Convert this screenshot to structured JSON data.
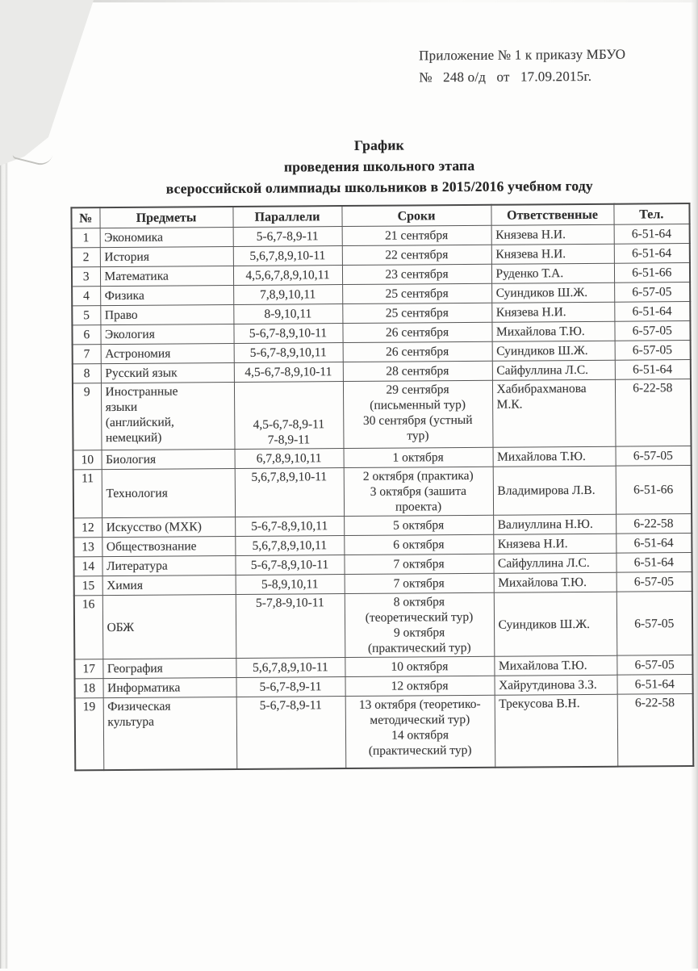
{
  "page": {
    "appendix_line1": "Приложение № 1 к приказу МБУО",
    "appendix_line2": "№   248 о/д   от   17.09.2015г.",
    "title_line1": "График",
    "title_line2": "проведения школьного этапа",
    "title_line3": "всероссийской олимпиады школьников в 2015/2016 учебном году"
  },
  "table": {
    "columns": [
      "№",
      "Предметы",
      "Параллели",
      "Сроки",
      "Ответственные",
      "Тел."
    ],
    "rows": [
      {
        "num": "1",
        "subject": "Экономика",
        "parallels": "5-6,7-8,9-11",
        "dates": "21 сентября",
        "responsible": "Князева Н.И.",
        "phone": "6-51-64"
      },
      {
        "num": "2",
        "subject": "История",
        "parallels": "5,6,7,8,9,10-11",
        "dates": "22 сентября",
        "responsible": "Князева Н.И.",
        "phone": "6-51-64"
      },
      {
        "num": "3",
        "subject": "Математика",
        "parallels": "4,5,6,7,8,9,10,11",
        "dates": "23 сентября",
        "responsible": "Руденко Т.А.",
        "phone": "6-51-66"
      },
      {
        "num": "4",
        "subject": "Физика",
        "parallels": "7,8,9,10,11",
        "dates": "25 сентября",
        "responsible": "Суиндиков Ш.Ж.",
        "phone": "6-57-05"
      },
      {
        "num": "5",
        "subject": "Право",
        "parallels": "8-9,10,11",
        "dates": "25 сентября",
        "responsible": "Князева Н.И.",
        "phone": "6-51-64"
      },
      {
        "num": "6",
        "subject": "Экология",
        "parallels": "5-6,7-8,9,10-11",
        "dates": "26 сентября",
        "responsible": "Михайлова Т.Ю.",
        "phone": "6-57-05"
      },
      {
        "num": "7",
        "subject": "Астрономия",
        "parallels": "5-6,7-8,9,10,11",
        "dates": "26 сентября",
        "responsible": "Суиндиков Ш.Ж.",
        "phone": "6-57-05"
      },
      {
        "num": "8",
        "subject": "Русский язык",
        "parallels": "4,5-6,7-8,9,10-11",
        "dates": "28 сентября",
        "responsible": "Сайфуллина Л.С.",
        "phone": "6-51-64"
      },
      {
        "num": "9",
        "subject": "Иностранные\nязыки\n(английский,\nнемецкий)",
        "parallels": "4,5-6,7-8,9-11\n7-8,9-11",
        "dates": "29 сентября\n(письменный тур)\n30 сентября (устный\nтур)",
        "responsible": "Хабибрахманова\nМ.К.",
        "phone": "6-22-58"
      },
      {
        "num": "10",
        "subject": "Биология",
        "parallels": "6,7,8,9,10,11",
        "dates": "1 октября",
        "responsible": "Михайлова Т.Ю.",
        "phone": "6-57-05"
      },
      {
        "num": "11",
        "subject": "Технология",
        "parallels": "5,6,7,8,9,10-11",
        "dates": "2 октября (практика)\n3 октября (зашита\nпроекта)",
        "responsible": "Владимирова Л.В.",
        "phone": "6-51-66"
      },
      {
        "num": "12",
        "subject": "Искусство (МХК)",
        "parallels": "5-6,7-8,9,10,11",
        "dates": "5 октября",
        "responsible": "Валиуллина Н.Ю.",
        "phone": "6-22-58"
      },
      {
        "num": "13",
        "subject": "Обществознание",
        "parallels": "5,6,7,8,9,10,11",
        "dates": "6 октября",
        "responsible": "Князева Н.И.",
        "phone": "6-51-64"
      },
      {
        "num": "14",
        "subject": "Литература",
        "parallels": "5-6,7-8,9,10-11",
        "dates": "7 октября",
        "responsible": "Сайфуллина Л.С.",
        "phone": "6-51-64"
      },
      {
        "num": "15",
        "subject": "Химия",
        "parallels": "5-8,9,10,11",
        "dates": "7 октября",
        "responsible": "Михайлова Т.Ю.",
        "phone": "6-57-05"
      },
      {
        "num": "16",
        "subject": "ОБЖ",
        "parallels": "5-7,8-9,10-11",
        "dates": "8 октября\n(теоретический тур)\n9 октября\n(практический тур)",
        "responsible": "Суиндиков Ш.Ж.",
        "phone": "6-57-05"
      },
      {
        "num": "17",
        "subject": "География",
        "parallels": "5,6,7,8,9,10-11",
        "dates": "10 октября",
        "responsible": "Михайлова Т.Ю.",
        "phone": "6-57-05"
      },
      {
        "num": "18",
        "subject": "Информатика",
        "parallels": "5-6,7-8,9-11",
        "dates": "12 октября",
        "responsible": "Хайрутдинова З.З.",
        "phone": "6-51-64"
      },
      {
        "num": "19",
        "subject": "Физическая\nкультура",
        "parallels": "5-6,7-8,9-11",
        "dates": "13 октября (теоретико-\nметодический тур)\n14 октября\n(практический тур)",
        "responsible": "Трекусова В.Н.",
        "phone": "6-22-58"
      }
    ]
  }
}
